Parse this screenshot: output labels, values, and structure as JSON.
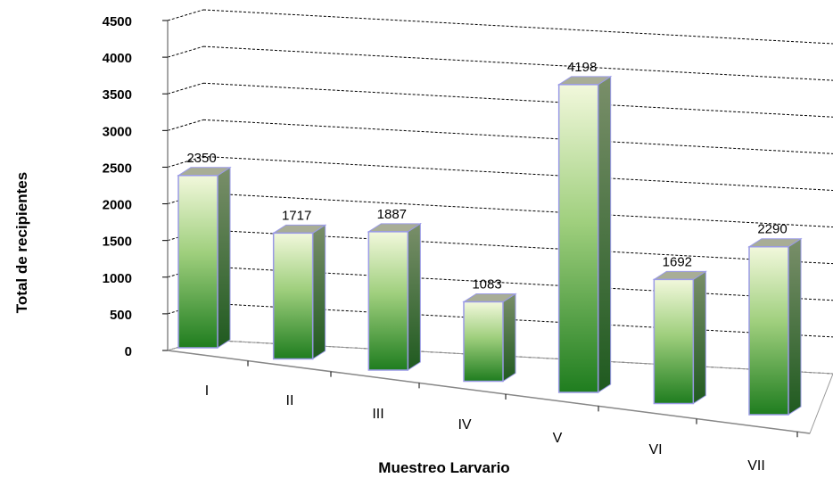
{
  "chart_data": {
    "type": "bar",
    "categories": [
      "I",
      "II",
      "III",
      "IV",
      "V",
      "VI",
      "VII"
    ],
    "values": [
      2350,
      1717,
      1887,
      1083,
      4198,
      1692,
      2290
    ],
    "xlabel": "Muestreo Larvario",
    "ylabel": "Total de recipientes",
    "ylim": [
      0,
      4500
    ],
    "yticks": [
      0,
      500,
      1000,
      1500,
      2000,
      2500,
      3000,
      3500,
      4000,
      4500
    ],
    "grid": true,
    "legend": "none",
    "colors": {
      "bar_light": "#f0f7d8",
      "bar_dark": "#1e7a1e",
      "bar_edge": "#9a9ae6",
      "bar_top": "#a8ad96",
      "bar_side": "#2f6e2f"
    }
  }
}
